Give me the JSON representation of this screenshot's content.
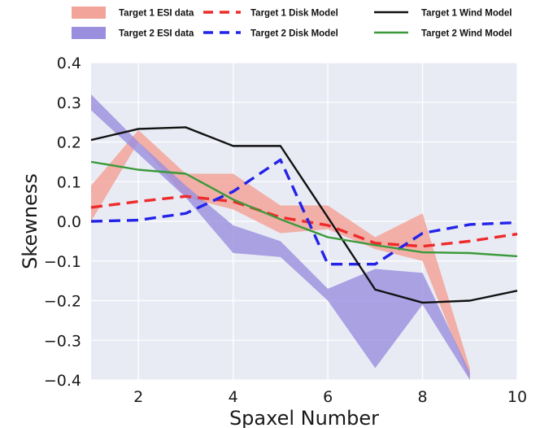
{
  "chart_data": {
    "type": "line",
    "title": "",
    "xlabel": "Spaxel Number",
    "ylabel": "Skewness",
    "xlim": [
      1,
      10
    ],
    "ylim": [
      -0.4,
      0.4
    ],
    "xticks": [
      2,
      4,
      6,
      8,
      10
    ],
    "yticks": [
      -0.4,
      -0.3,
      -0.2,
      -0.1,
      0.0,
      0.1,
      0.2,
      0.3,
      0.4
    ],
    "ytick_labels": [
      "−0.4",
      "−0.3",
      "−0.2",
      "−0.1",
      "0.0",
      "0.1",
      "0.2",
      "0.3",
      "0.4"
    ],
    "xtick_labels": [
      "2",
      "4",
      "6",
      "8",
      "10"
    ],
    "grid": true,
    "background": "#e9ebf4",
    "legend_position": "top",
    "bands": [
      {
        "name": "Target 1 ESI data",
        "color": "#f2a49a",
        "x": [
          1,
          2,
          3,
          4,
          5,
          6,
          7,
          8,
          9
        ],
        "lower": [
          0.0,
          0.2,
          0.06,
          0.03,
          -0.03,
          -0.02,
          -0.07,
          -0.1,
          -0.4
        ],
        "upper": [
          0.09,
          0.23,
          0.12,
          0.12,
          0.04,
          0.04,
          -0.04,
          0.02,
          -0.37
        ]
      },
      {
        "name": "Target 2 ESI data",
        "color": "#9a8fde",
        "x": [
          1,
          2,
          3,
          4,
          5,
          6,
          7,
          8,
          9
        ],
        "lower": [
          0.28,
          0.17,
          0.06,
          -0.08,
          -0.09,
          -0.2,
          -0.37,
          -0.21,
          -0.4
        ],
        "upper": [
          0.32,
          0.2,
          0.09,
          -0.01,
          -0.05,
          -0.17,
          -0.12,
          -0.13,
          -0.38
        ]
      }
    ],
    "series": [
      {
        "name": "Target 1 Disk Model",
        "color": "#ee2b2b",
        "style": "dashed",
        "x": [
          1,
          2,
          3,
          4,
          5,
          6,
          7,
          8,
          9,
          10
        ],
        "y": [
          0.035,
          0.05,
          0.063,
          0.05,
          0.01,
          -0.01,
          -0.055,
          -0.063,
          -0.05,
          -0.032
        ]
      },
      {
        "name": "Target 2 Disk Model",
        "color": "#2323e8",
        "style": "dashed",
        "x": [
          1,
          2,
          3,
          4,
          5,
          6,
          7,
          8,
          9,
          10
        ],
        "y": [
          0.0,
          0.003,
          0.02,
          0.075,
          0.155,
          -0.108,
          -0.108,
          -0.03,
          -0.008,
          -0.003
        ]
      },
      {
        "name": "Target 1 Wind Model",
        "color": "#111111",
        "style": "solid",
        "x": [
          1,
          2,
          3,
          4,
          5,
          6,
          7,
          8,
          9,
          10
        ],
        "y": [
          0.205,
          0.233,
          0.237,
          0.19,
          0.19,
          0.01,
          -0.172,
          -0.205,
          -0.2,
          -0.175
        ]
      },
      {
        "name": "Target 2 Wind Model",
        "color": "#3a9a3a",
        "style": "solid",
        "x": [
          1,
          2,
          3,
          4,
          5,
          6,
          7,
          8,
          9,
          10
        ],
        "y": [
          0.15,
          0.13,
          0.12,
          0.055,
          0.005,
          -0.04,
          -0.06,
          -0.078,
          -0.08,
          -0.088
        ]
      }
    ],
    "legend": [
      {
        "label": "Target 1 ESI data",
        "kind": "patch",
        "color": "#f2a49a"
      },
      {
        "label": "Target 1 Disk Model",
        "kind": "dashed",
        "color": "#ee2b2b"
      },
      {
        "label": "Target 1 Wind Model",
        "kind": "solid",
        "color": "#111111"
      },
      {
        "label": "Target 2 ESI data",
        "kind": "patch",
        "color": "#9a8fde"
      },
      {
        "label": "Target 2 Disk Model",
        "kind": "dashed",
        "color": "#2323e8"
      },
      {
        "label": "Target 2 Wind Model",
        "kind": "solid",
        "color": "#3a9a3a"
      }
    ]
  }
}
